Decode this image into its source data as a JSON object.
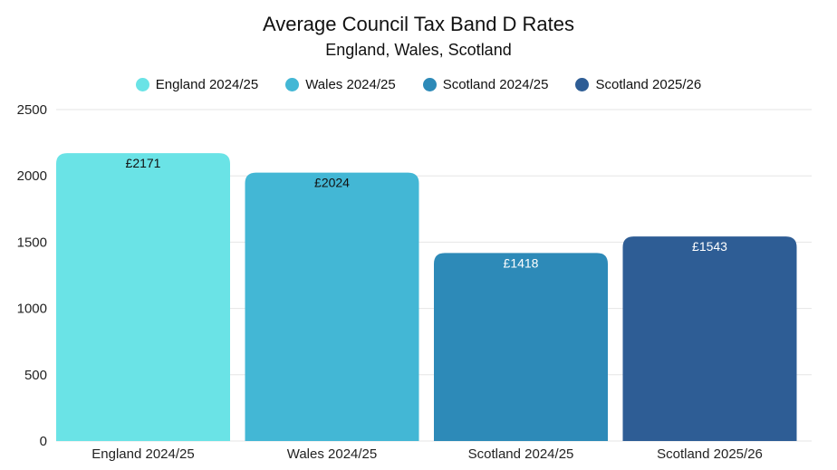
{
  "chart_data": {
    "type": "bar",
    "title": "Average Council Tax Band D Rates",
    "subtitle": "England, Wales, Scotland",
    "categories": [
      "England 2024/25",
      "Wales 2024/25",
      "Scotland 2024/25",
      "Scotland 2025/26"
    ],
    "values": [
      2171,
      2024,
      1418,
      1543
    ],
    "data_labels": [
      "£2171",
      "£2024",
      "£1418",
      "£1543"
    ],
    "colors": [
      "#6ae3e6",
      "#43b7d5",
      "#2d8ab8",
      "#2e5d95"
    ],
    "label_colors": [
      "#111111",
      "#111111",
      "#ffffff",
      "#ffffff"
    ],
    "legend": [
      "England 2024/25",
      "Wales 2024/25",
      "Scotland 2024/25",
      "Scotland 2025/26"
    ],
    "legend_position": "top",
    "yticks": [
      0,
      500,
      1000,
      1500,
      2000,
      2500
    ],
    "ylim": [
      0,
      2500
    ],
    "xlabel": "",
    "ylabel": "",
    "grid": true
  }
}
